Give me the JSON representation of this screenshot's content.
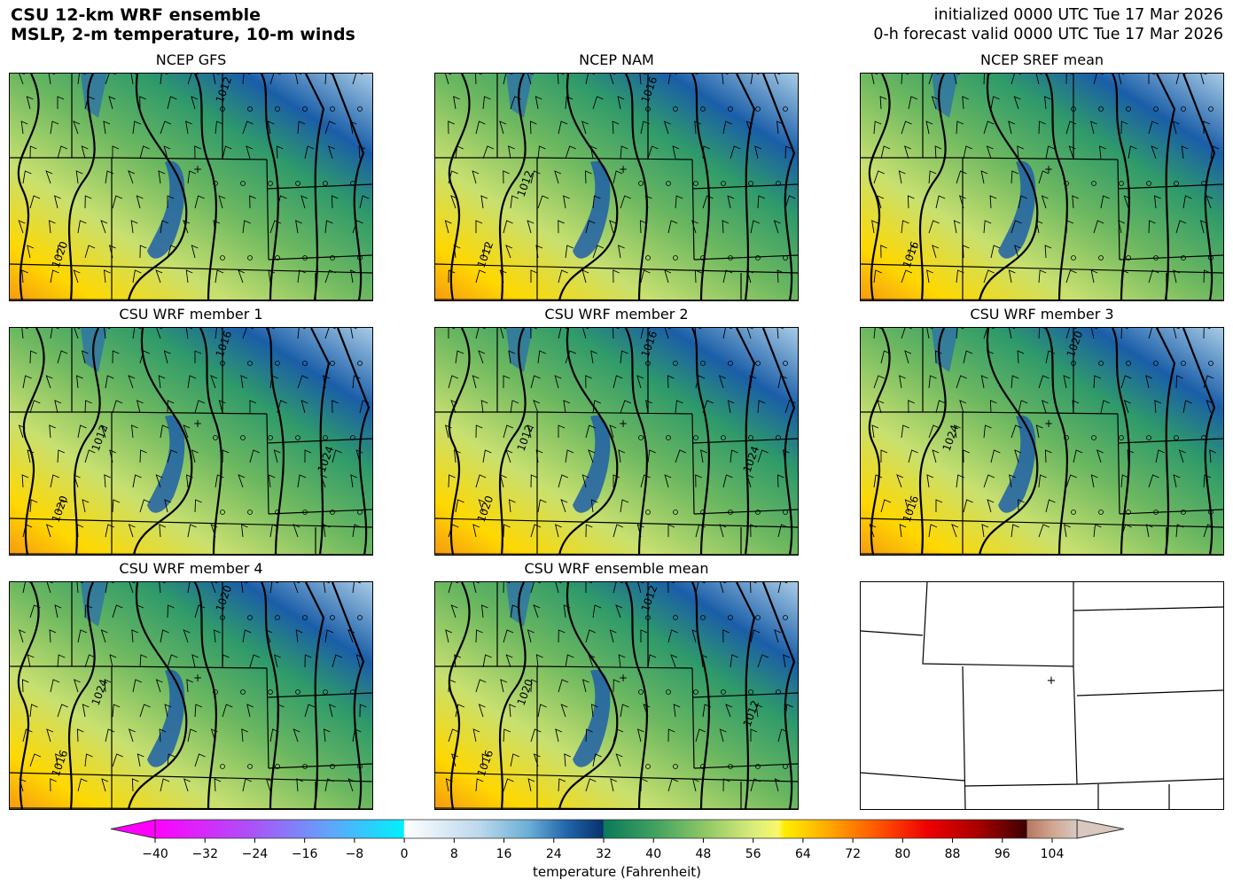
{
  "header": {
    "title_line1": "CSU 12-km WRF ensemble",
    "title_line2": "MSLP, 2-m temperature, 10-m winds",
    "init_line": "initialized 0000 UTC Tue 17 Mar 2026",
    "valid_line": "0-h forecast valid 0000 UTC Tue 17 Mar 2026"
  },
  "panels": [
    {
      "title": "NCEP GFS",
      "contour_labels": [
        "1020",
        "1012"
      ],
      "variant": 0
    },
    {
      "title": "NCEP NAM",
      "contour_labels": [
        "1012",
        "1016",
        "1012"
      ],
      "variant": 1
    },
    {
      "title": "NCEP SREF mean",
      "contour_labels": [
        "1016"
      ],
      "variant": 2
    },
    {
      "title": "CSU WRF member 1",
      "contour_labels": [
        "1020",
        "1016",
        "1012",
        "1024"
      ],
      "variant": 3
    },
    {
      "title": "CSU WRF member 2",
      "contour_labels": [
        "1020",
        "1016",
        "1012",
        "1024"
      ],
      "variant": 3
    },
    {
      "title": "CSU WRF member 3",
      "contour_labels": [
        "1016",
        "1020",
        "1024"
      ],
      "variant": 4
    },
    {
      "title": "CSU WRF member 4",
      "contour_labels": [
        "1016",
        "1020",
        "1024"
      ],
      "variant": 4
    },
    {
      "title": "CSU WRF ensemble mean",
      "contour_labels": [
        "1016",
        "1012",
        "1020",
        "1012"
      ],
      "variant": 1
    },
    {
      "title": "",
      "contour_labels": [],
      "variant": -1
    }
  ],
  "colorbar": {
    "label": "temperature (Fahrenheit)",
    "min": -40,
    "max": 108,
    "ticks": [
      -40,
      -32,
      -24,
      -16,
      -8,
      0,
      8,
      16,
      24,
      32,
      40,
      48,
      56,
      64,
      72,
      80,
      88,
      96,
      104
    ],
    "tick_labels": [
      "−40",
      "−32",
      "−24",
      "−16",
      "−8",
      "0",
      "8",
      "16",
      "24",
      "32",
      "40",
      "48",
      "56",
      "64",
      "72",
      "80",
      "88",
      "96",
      "104"
    ],
    "color_stops": [
      [
        -40,
        "#ff00ff"
      ],
      [
        -24,
        "#a855f7"
      ],
      [
        -12,
        "#60a5fa"
      ],
      [
        -0.1,
        "#00f0ff"
      ],
      [
        0,
        "#ffffff"
      ],
      [
        12,
        "#bcd8ec"
      ],
      [
        20,
        "#6baed6"
      ],
      [
        26,
        "#2166ac"
      ],
      [
        31.9,
        "#08306b"
      ],
      [
        32,
        "#0a7a5a"
      ],
      [
        40,
        "#3fa060"
      ],
      [
        48,
        "#8cc665"
      ],
      [
        56,
        "#d9ec7a"
      ],
      [
        60,
        "#f8f86a"
      ],
      [
        61,
        "#ffee00"
      ],
      [
        68,
        "#ffaa00"
      ],
      [
        76,
        "#ff5500"
      ],
      [
        84,
        "#ee0000"
      ],
      [
        92,
        "#aa0000"
      ],
      [
        99.9,
        "#3a0000"
      ],
      [
        100,
        "#b87760"
      ],
      [
        104,
        "#d0a590"
      ],
      [
        108,
        "#d9c8c0"
      ]
    ]
  }
}
